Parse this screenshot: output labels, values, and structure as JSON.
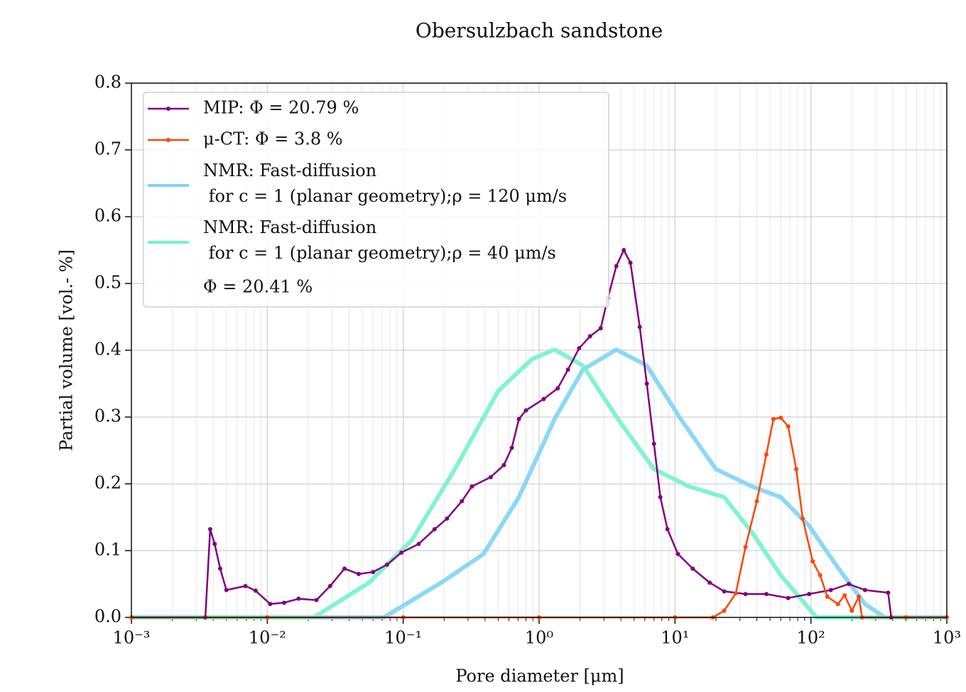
{
  "chart_data": {
    "type": "line",
    "title": "Obersulzbach sandstone",
    "xlabel": "Pore diameter [μm]",
    "ylabel": "Partial volume [vol.- %]",
    "xscale": "log",
    "xlim": [
      0.001,
      1000
    ],
    "xticks": [
      {
        "value": 0.001,
        "label": "10⁻³"
      },
      {
        "value": 0.01,
        "label": "10⁻²"
      },
      {
        "value": 0.1,
        "label": "10⁻¹"
      },
      {
        "value": 1,
        "label": "10⁰"
      },
      {
        "value": 10,
        "label": "10¹"
      },
      {
        "value": 100,
        "label": "10²"
      },
      {
        "value": 1000,
        "label": "10³"
      }
    ],
    "xminorticks": [
      0.002,
      0.003,
      0.004,
      0.005,
      0.006,
      0.007,
      0.008,
      0.009,
      0.02,
      0.03,
      0.04,
      0.05,
      0.06,
      0.07,
      0.08,
      0.09,
      0.2,
      0.3,
      0.4,
      0.5,
      0.6,
      0.7,
      0.8,
      0.9,
      2,
      3,
      4,
      5,
      6,
      7,
      8,
      9,
      20,
      30,
      40,
      50,
      60,
      70,
      80,
      90,
      200,
      300,
      400,
      500,
      600,
      700,
      800,
      900
    ],
    "ylim": [
      0,
      0.8
    ],
    "yticks": [
      {
        "value": 0,
        "label": "0.0"
      },
      0.1,
      0.2,
      0.3,
      0.4,
      0.5,
      0.6,
      0.7,
      0.8
    ],
    "grid": true,
    "legend": "upper left",
    "legend_note": "Φ = 20.41 %",
    "series": [
      {
        "name": "NMR: Fast-diffusion\n for c = 1 (planar geometry);ρ = 120 μm/s",
        "color": "#7fd3f7",
        "markers": false,
        "x": [
          0.001,
          0.072,
          0.19,
          0.39,
          0.71,
          1.3,
          2.1,
          3.7,
          6.2,
          11,
          20,
          37,
          60,
          97,
          160,
          250,
          350,
          1000
        ],
        "values": [
          0,
          0,
          0.052,
          0.095,
          0.18,
          0.297,
          0.371,
          0.401,
          0.377,
          0.297,
          0.222,
          0.196,
          0.18,
          0.137,
          0.073,
          0.02,
          0,
          0
        ]
      },
      {
        "name": "NMR: Fast-diffusion\n for c = 1 (planar geometry);ρ = 40 μm/s",
        "color": "#74f2cb",
        "markers": false,
        "x": [
          0.001,
          0.022,
          0.056,
          0.116,
          0.24,
          0.5,
          0.89,
          1.3,
          2.1,
          3.8,
          7,
          12.7,
          23,
          37,
          60,
          110,
          1000
        ],
        "values": [
          0,
          0,
          0.052,
          0.116,
          0.222,
          0.339,
          0.387,
          0.401,
          0.377,
          0.297,
          0.222,
          0.196,
          0.18,
          0.127,
          0.063,
          0,
          0
        ]
      },
      {
        "name": "MIP: Φ = 20.79 %",
        "color": "#800080",
        "markers": true,
        "x": [
          0.001,
          0.0035,
          0.0038,
          0.0041,
          0.0045,
          0.005,
          0.0069,
          0.0082,
          0.0105,
          0.0133,
          0.017,
          0.023,
          0.029,
          0.037,
          0.047,
          0.06,
          0.076,
          0.097,
          0.13,
          0.17,
          0.21,
          0.27,
          0.32,
          0.44,
          0.55,
          0.63,
          0.71,
          0.8,
          1.08,
          1.37,
          1.63,
          1.97,
          2.37,
          2.84,
          3.2,
          3.7,
          4.2,
          4.7,
          5.5,
          6.2,
          7.0,
          7.8,
          8.8,
          10.5,
          13.5,
          18,
          23,
          33,
          47,
          68,
          97,
          140,
          190,
          250,
          370,
          390,
          1000
        ],
        "values": [
          0,
          0,
          0.132,
          0.11,
          0.073,
          0.041,
          0.047,
          0.04,
          0.02,
          0.022,
          0.028,
          0.026,
          0.047,
          0.073,
          0.065,
          0.068,
          0.079,
          0.097,
          0.11,
          0.132,
          0.148,
          0.174,
          0.196,
          0.21,
          0.228,
          0.254,
          0.297,
          0.31,
          0.327,
          0.343,
          0.371,
          0.403,
          0.421,
          0.433,
          0.478,
          0.526,
          0.55,
          0.531,
          0.435,
          0.35,
          0.26,
          0.18,
          0.132,
          0.095,
          0.073,
          0.052,
          0.039,
          0.035,
          0.035,
          0.029,
          0.035,
          0.041,
          0.05,
          0.041,
          0.037,
          0,
          0
        ]
      },
      {
        "name": "μ-CT: Φ = 3.8 %",
        "color": "#ff4500",
        "markers": true,
        "x": [
          0.001,
          0.01,
          0.1,
          1,
          10,
          19,
          23,
          28,
          33,
          40,
          47,
          53,
          60,
          68,
          78,
          87,
          103,
          117,
          132,
          158,
          177,
          200,
          225,
          238,
          500,
          1000
        ],
        "values": [
          0,
          0,
          0,
          0,
          0,
          0,
          0.01,
          0.036,
          0.105,
          0.174,
          0.244,
          0.297,
          0.299,
          0.286,
          0.222,
          0.148,
          0.084,
          0.063,
          0.031,
          0.02,
          0.033,
          0.01,
          0.031,
          0,
          0,
          0
        ]
      }
    ],
    "legend_order": [
      2,
      3,
      0,
      1
    ]
  }
}
